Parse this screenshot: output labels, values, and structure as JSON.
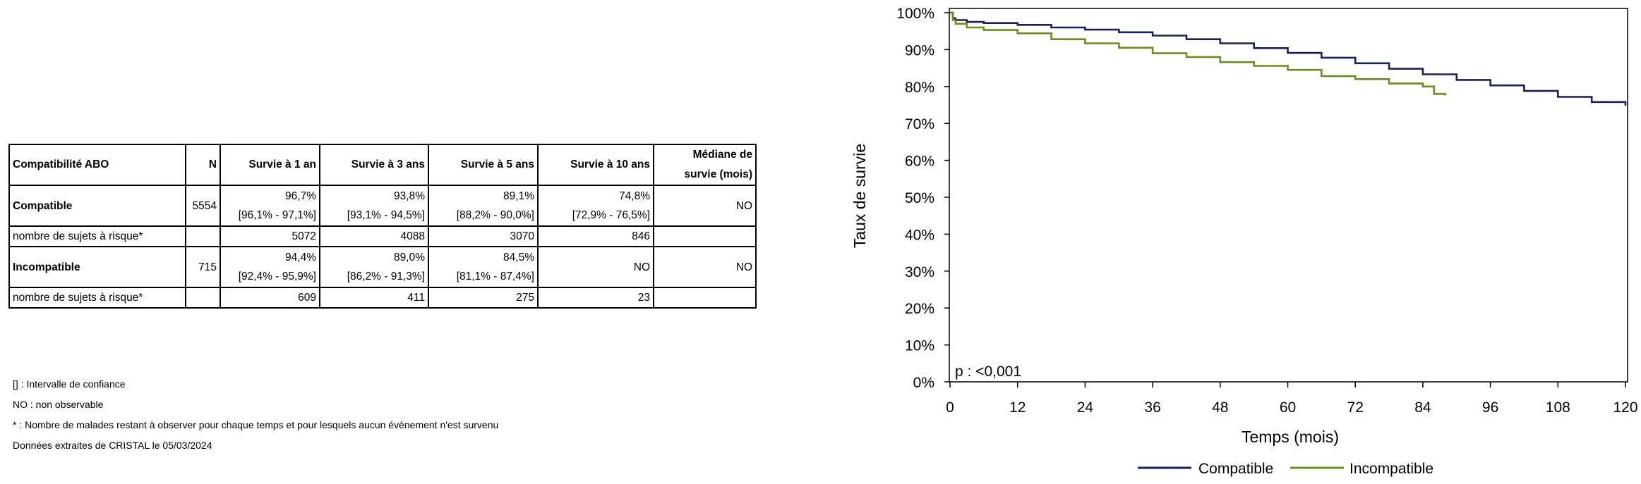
{
  "table": {
    "headers": [
      "Compatibilité ABO",
      "N",
      "Survie à 1 an",
      "Survie à 3 ans",
      "Survie à 5 ans",
      "Survie à 10 ans",
      "Médiane de",
      "survie (mois)"
    ],
    "compatible": {
      "label": "Compatible",
      "n": "5554",
      "y1": "96,7%",
      "y1ci": "[96,1% - 97,1%]",
      "y3": "93,8%",
      "y3ci": "[93,1% - 94,5%]",
      "y5": "89,1%",
      "y5ci": "[88,2% - 90,0%]",
      "y10": "74,8%",
      "y10ci": "[72,9% - 76,5%]",
      "median": "NO"
    },
    "compatible_risk": {
      "label": "nombre de sujets à risque*",
      "y1": "5072",
      "y3": "4088",
      "y5": "3070",
      "y10": "846"
    },
    "incompatible": {
      "label": "Incompatible",
      "n": "715",
      "y1": "94,4%",
      "y1ci": "[92,4% - 95,9%]",
      "y3": "89,0%",
      "y3ci": "[86,2% - 91,3%]",
      "y5": "84,5%",
      "y5ci": "[81,1% - 87,4%]",
      "y10": "NO",
      "median": "NO"
    },
    "incompatible_risk": {
      "label": "nombre de sujets à risque*",
      "y1": "609",
      "y3": "411",
      "y5": "275",
      "y10": "23"
    }
  },
  "notes": [
    "[] : Intervalle de confiance",
    "NO : non observable",
    "* : Nombre de malades restant à observer pour chaque temps et pour lesquels aucun évènement n'est survenu",
    "Données extraites de CRISTAL le 05/03/2024"
  ],
  "chart_data": {
    "type": "line",
    "xlabel": "Temps (mois)",
    "ylabel": "Taux de survie",
    "xlim": [
      0,
      120
    ],
    "ylim": [
      0,
      100
    ],
    "xticks": [
      "0",
      "12",
      "24",
      "36",
      "48",
      "60",
      "72",
      "84",
      "96",
      "108",
      "120"
    ],
    "yticks": [
      "0%",
      "10%",
      "20%",
      "30%",
      "40%",
      "50%",
      "60%",
      "70%",
      "80%",
      "90%",
      "100%"
    ],
    "annotation": "p : <0,001",
    "legend_position": "bottom",
    "grid": false,
    "series": [
      {
        "name": "Compatible",
        "color": "#1b1f5e",
        "x": [
          0,
          0.5,
          1,
          3,
          6,
          12,
          18,
          24,
          30,
          36,
          42,
          48,
          54,
          60,
          66,
          72,
          78,
          84,
          90,
          96,
          102,
          108,
          114,
          120
        ],
        "y": [
          100,
          98.5,
          98,
          97.5,
          97.2,
          96.7,
          96.0,
          95.4,
          94.7,
          93.8,
          92.8,
          91.7,
          90.4,
          89.1,
          87.8,
          86.3,
          84.8,
          83.3,
          81.8,
          80.3,
          78.8,
          77.2,
          75.8,
          74.8
        ]
      },
      {
        "name": "Incompatible",
        "color": "#6a8e1a",
        "x": [
          0,
          0.5,
          1,
          3,
          6,
          12,
          18,
          24,
          30,
          36,
          42,
          48,
          54,
          60,
          66,
          72,
          78,
          84,
          86,
          88
        ],
        "y": [
          100,
          98,
          97,
          96,
          95.3,
          94.4,
          92.8,
          91.7,
          90.5,
          89.0,
          88.0,
          86.6,
          85.6,
          84.5,
          82.8,
          82.0,
          80.8,
          80.0,
          78.0,
          77.6
        ]
      }
    ]
  }
}
